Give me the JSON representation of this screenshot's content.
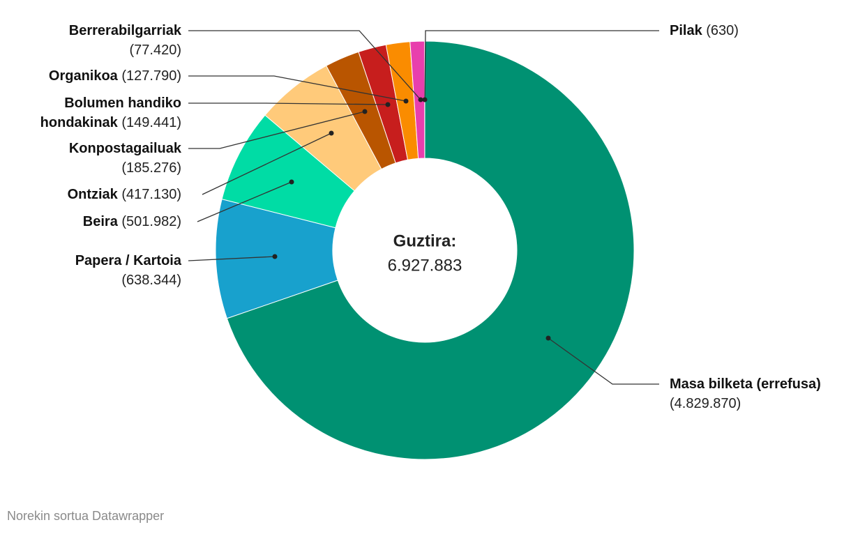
{
  "chart_data": {
    "type": "pie",
    "donut": true,
    "categories": [
      "Masa bilketa (errefusa)",
      "Papera / Kartoia",
      "Beira",
      "Ontziak",
      "Konpostagailuak",
      "Bolumen handiko hondakinak",
      "Organikoa",
      "Berrerabilgarriak",
      "Pilak"
    ],
    "values": [
      4829870,
      638344,
      501982,
      417130,
      185276,
      149441,
      127790,
      77420,
      630
    ],
    "value_labels": [
      "(4.829.870)",
      "(638.344)",
      "(501.982)",
      "(417.130)",
      "(185.276)",
      "(149.441)",
      "(127.790)",
      "(77.420)",
      "(630)"
    ],
    "colors": [
      "#009172",
      "#18a1cd",
      "#00dca5",
      "#ffca7a",
      "#b95500",
      "#c71e1d",
      "#fa8c00",
      "#e83fad",
      "#8f3f97"
    ],
    "center_title": "Guztira:",
    "total": {
      "value": 6927883,
      "label": "6.927.883"
    }
  },
  "footer": "Norekin sortua Datawrapper"
}
